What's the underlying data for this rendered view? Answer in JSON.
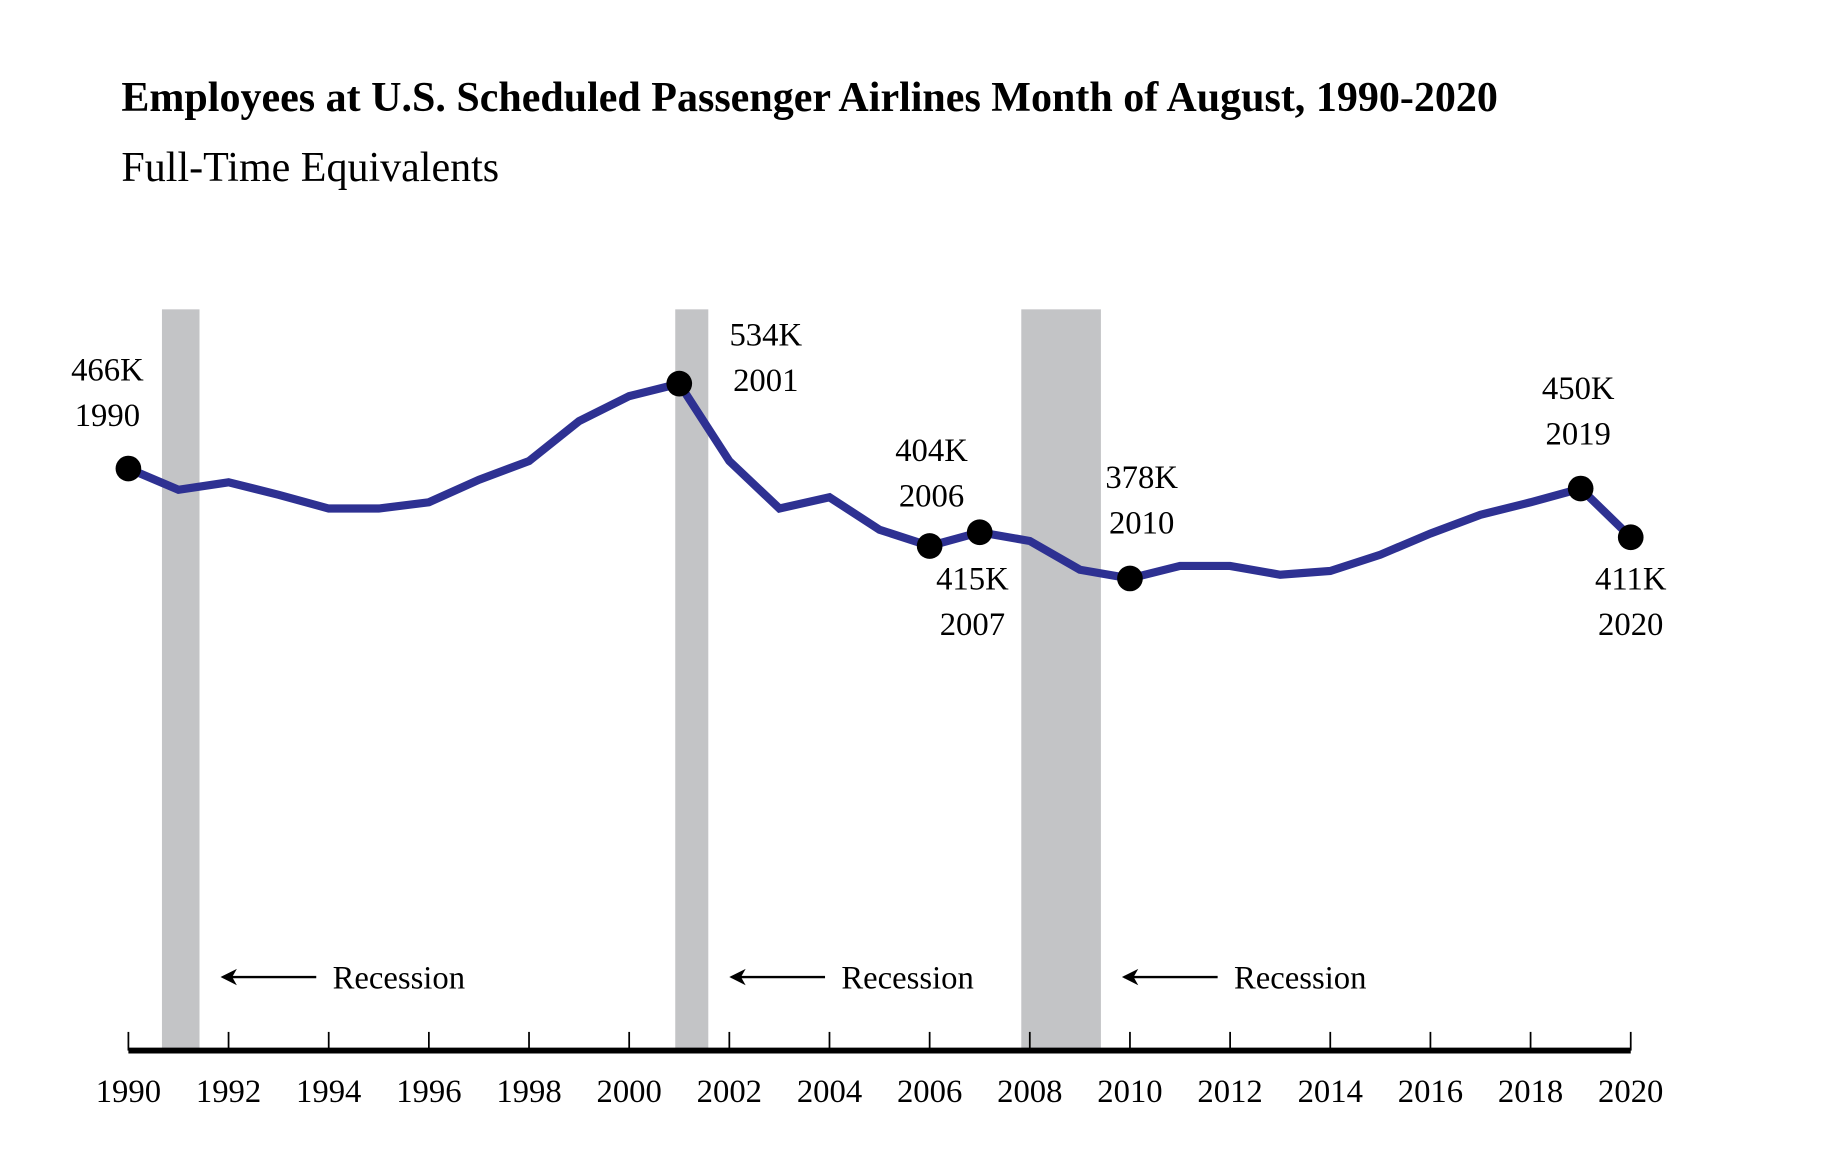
{
  "chart_data": {
    "type": "line",
    "title": "Employees at U.S. Scheduled Passenger Airlines Month of August, 1990-2020",
    "subtitle": "Full-Time Equivalents",
    "xlabel": "",
    "ylabel": "",
    "xlim": [
      1990,
      2020
    ],
    "ylim": [
      0,
      600
    ],
    "grid": false,
    "x_ticks": [
      "1990",
      "1992",
      "1994",
      "1996",
      "1998",
      "2000",
      "2002",
      "2004",
      "2006",
      "2008",
      "2010",
      "2012",
      "2014",
      "2016",
      "2018",
      "2020"
    ],
    "x": [
      1990,
      1991,
      1992,
      1993,
      1994,
      1995,
      1996,
      1997,
      1998,
      1999,
      2000,
      2001,
      2002,
      2003,
      2004,
      2005,
      2006,
      2007,
      2008,
      2009,
      2010,
      2011,
      2012,
      2013,
      2014,
      2015,
      2016,
      2017,
      2018,
      2019,
      2020
    ],
    "values": [
      466,
      449,
      455,
      445,
      434,
      434,
      439,
      457,
      472,
      504,
      524,
      534,
      472,
      434,
      443,
      417,
      404,
      415,
      408,
      385,
      378,
      388,
      388,
      381,
      384,
      397,
      414,
      429,
      439,
      450,
      411
    ],
    "line_color": "#2e3192",
    "recession_color": "#c3c4c6",
    "recessions": [
      {
        "start": 1990.67,
        "end": 1991.42,
        "label": "Recession"
      },
      {
        "start": 2000.92,
        "end": 2001.58,
        "label": "Recession"
      },
      {
        "start": 2007.83,
        "end": 2009.42,
        "label": "Recession"
      }
    ],
    "annotations": [
      {
        "year": 1990,
        "value_label": "466K",
        "year_label": "1990"
      },
      {
        "year": 2001,
        "value_label": "534K",
        "year_label": "2001"
      },
      {
        "year": 2006,
        "value_label": "404K",
        "year_label": "2006"
      },
      {
        "year": 2007,
        "value_label": "415K",
        "year_label": "2007"
      },
      {
        "year": 2010,
        "value_label": "378K",
        "year_label": "2010"
      },
      {
        "year": 2019,
        "value_label": "450K",
        "year_label": "2019"
      },
      {
        "year": 2020,
        "value_label": "411K",
        "year_label": "2020"
      }
    ]
  }
}
